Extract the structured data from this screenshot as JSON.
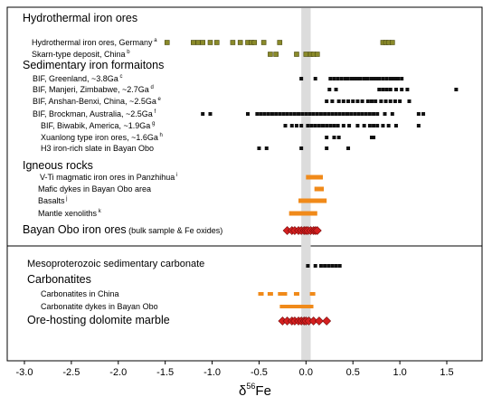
{
  "chart_data": {
    "type": "scatter",
    "xlabel": "δ",
    "xlabel_sup": "56",
    "xlabel_suffix": "Fe",
    "xlim": [
      -3.1,
      1.8
    ],
    "xticks": [
      -3.0,
      -2.5,
      -2.0,
      -1.5,
      -1.0,
      -0.5,
      0.0,
      0.5,
      1.0,
      1.5
    ],
    "xtick_labels": [
      "-3.0",
      "-2.5",
      "-2.0",
      "-1.5",
      "-1.0",
      "-0.5",
      "0.0",
      "0.5",
      "1.0",
      "1.5"
    ],
    "reference_band": [
      -0.05,
      0.05
    ],
    "colors": {
      "hydrothermal": "#8a8a2a",
      "bif": "#111111",
      "igneous_bar": "#f08a1a",
      "bayan_obo": "#d42020",
      "band": "#dcdcdc"
    },
    "headers": [
      {
        "id": "hydro",
        "text": "Hydrothermal iron ores",
        "size": "large"
      },
      {
        "id": "sed",
        "text": "Sedimentary iron formaitons",
        "size": "large"
      },
      {
        "id": "ign",
        "text": "Igneous rocks",
        "size": "large"
      },
      {
        "id": "meso",
        "text": "Mesoproterozoic sedimentary carbonate",
        "size": "medium"
      },
      {
        "id": "carb",
        "text": "Carbonatites",
        "size": "large"
      }
    ],
    "series": [
      {
        "id": "s1",
        "label": "Hydrothermal iron ores, Germany",
        "sup": "a",
        "marker": "square",
        "color": "hydrothermal",
        "x": [
          -1.48,
          -1.2,
          -1.15,
          -1.1,
          -1.02,
          -0.95,
          -0.78,
          -0.7,
          -0.62,
          -0.58,
          -0.55,
          -0.45,
          -0.28,
          0.82,
          0.85,
          0.88,
          0.92
        ]
      },
      {
        "id": "s2",
        "label": "Skarn-type deposit, China",
        "sup": "b",
        "marker": "square",
        "color": "hydrothermal",
        "x": [
          -0.38,
          -0.32,
          -0.1,
          0.0,
          0.05,
          0.08,
          0.12
        ]
      },
      {
        "id": "s3",
        "label": "BIF, Greenland, ~3.8Ga",
        "sup": "c",
        "marker": "square",
        "color": "bif",
        "x": [
          -0.05,
          0.1,
          0.26,
          0.3,
          0.34,
          0.38,
          0.42,
          0.44,
          0.48,
          0.5,
          0.52,
          0.55,
          0.58,
          0.62,
          0.64,
          0.66,
          0.7,
          0.72,
          0.75,
          0.78,
          0.82,
          0.86,
          0.9,
          0.92,
          0.95,
          0.98,
          1.02
        ]
      },
      {
        "id": "s4",
        "label": "BIF, Manjeri, Zimbabwe, ~2.7Ga",
        "sup": "d",
        "marker": "square",
        "color": "bif",
        "x": [
          0.25,
          0.32,
          0.78,
          0.82,
          0.86,
          0.9,
          0.96,
          1.02,
          1.08,
          1.6
        ]
      },
      {
        "id": "s5",
        "label": "BIF, Anshan-Benxi, China, ~2.5Ga",
        "sup": "e",
        "marker": "square",
        "color": "bif",
        "x": [
          0.22,
          0.28,
          0.35,
          0.4,
          0.45,
          0.5,
          0.55,
          0.6,
          0.66,
          0.7,
          0.74,
          0.8,
          0.85,
          0.9,
          0.95,
          1.0,
          1.1
        ]
      },
      {
        "id": "s6",
        "label": "BIF, Brockman, Australia, ~2.5Ga",
        "sup": "f",
        "marker": "square",
        "color": "bif",
        "x": [
          -1.1,
          -1.02,
          -0.62,
          -0.52,
          -0.48,
          -0.44,
          -0.4,
          -0.36,
          -0.32,
          -0.28,
          -0.24,
          -0.2,
          -0.16,
          -0.12,
          -0.08,
          -0.04,
          0.0,
          0.04,
          0.08,
          0.12,
          0.16,
          0.2,
          0.24,
          0.28,
          0.32,
          0.36,
          0.4,
          0.44,
          0.48,
          0.52,
          0.56,
          0.6,
          0.64,
          0.68,
          0.72,
          0.76,
          0.84,
          0.92,
          1.2,
          1.25
        ]
      },
      {
        "id": "s7",
        "label": "BIF, Biwabik, America, ~1.9Ga",
        "sup": "g",
        "marker": "square",
        "color": "bif",
        "x": [
          -0.22,
          -0.15,
          -0.1,
          -0.05,
          0.02,
          0.06,
          0.1,
          0.14,
          0.18,
          0.22,
          0.26,
          0.3,
          0.34,
          0.4,
          0.46,
          0.55,
          0.62,
          0.68,
          0.72,
          0.76,
          0.82,
          0.88,
          0.96,
          1.2
        ]
      },
      {
        "id": "s8",
        "label": "Xuanlong type iron ores, ~1.6Ga",
        "sup": "h",
        "marker": "square",
        "color": "bif",
        "x": [
          0.22,
          0.3,
          0.35,
          0.7,
          0.72
        ]
      },
      {
        "id": "s9",
        "label": "H3 iron-rich slate in Bayan Obo",
        "sup": "",
        "marker": "square",
        "color": "bif",
        "x": [
          -0.5,
          -0.42,
          -0.05,
          0.22,
          0.45
        ]
      },
      {
        "id": "s10",
        "label": "V-Ti magmatic iron ores in Panzhihua",
        "sup": "i",
        "marker": "bar",
        "color": "igneous_bar",
        "range": [
          0.0,
          0.18
        ]
      },
      {
        "id": "s11",
        "label": "Mafic dykes in Bayan Obo area",
        "sup": "",
        "marker": "bar",
        "color": "igneous_bar",
        "range": [
          0.09,
          0.19
        ]
      },
      {
        "id": "s12",
        "label": "Basalts",
        "sup": "j",
        "marker": "bar",
        "color": "igneous_bar",
        "range": [
          -0.08,
          0.22
        ]
      },
      {
        "id": "s13",
        "label": "Mantle xenoliths",
        "sup": "k",
        "marker": "bar",
        "color": "igneous_bar",
        "range": [
          -0.18,
          0.12
        ]
      },
      {
        "id": "s14",
        "label": "Bayan Obo iron ores",
        "label_suffix": "(bulk sample & Fe oxides)",
        "sup": "",
        "marker": "diamond",
        "color": "bayan_obo",
        "big": true,
        "x": [
          -0.2,
          -0.15,
          -0.12,
          -0.08,
          -0.05,
          -0.02,
          0.0,
          0.02,
          0.05,
          0.08,
          0.1,
          0.12
        ]
      },
      {
        "id": "s15",
        "label": "",
        "sup": "",
        "marker": "square",
        "color": "bif",
        "x": [
          0.02,
          0.1,
          0.16,
          0.2,
          0.24,
          0.28,
          0.32,
          0.36
        ]
      },
      {
        "id": "s16",
        "label": "Carbonatites in China",
        "sup": "",
        "marker": "dash",
        "color": "igneous_bar",
        "x": [
          -0.48,
          -0.38,
          -0.27,
          -0.23,
          -0.1,
          0.07
        ]
      },
      {
        "id": "s17",
        "label": "Carbonatite dykes in Bayan Obo",
        "sup": "",
        "marker": "dash",
        "color": "igneous_bar",
        "x": [
          -0.25,
          -0.2,
          -0.15,
          -0.1,
          -0.05,
          0.0,
          0.05
        ]
      },
      {
        "id": "s18",
        "label": "Ore-hosting dolomite marble",
        "sup": "",
        "marker": "diamond",
        "color": "bayan_obo",
        "big": true,
        "x": [
          -0.25,
          -0.2,
          -0.15,
          -0.12,
          -0.08,
          -0.05,
          -0.02,
          0.0,
          0.03,
          0.08,
          0.14,
          0.22
        ]
      }
    ]
  }
}
